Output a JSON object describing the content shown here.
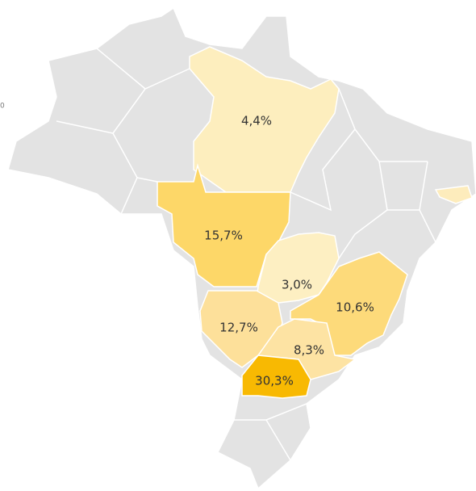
{
  "chart_data": {
    "type": "choropleth",
    "legend_min": 0,
    "values": [
      4.4,
      15.7,
      3.0,
      10.6,
      12.7,
      8.3,
      30.3
    ],
    "value_labels": [
      "4,4%",
      "15,7%",
      "3,0%",
      "10,6%",
      "12,7%",
      "8,3%",
      "30,3%"
    ],
    "colors": [
      "#fdeebe",
      "#fdd768",
      "#fdefc2",
      "#fdda7a",
      "#fde09a",
      "#fde3a3",
      "#f8b902"
    ]
  }
}
